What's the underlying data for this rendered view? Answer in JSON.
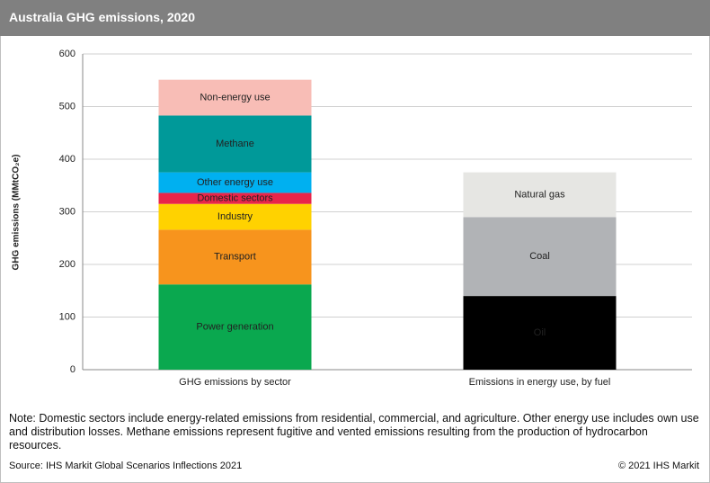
{
  "header": {
    "title": "Australia GHG emissions, 2020"
  },
  "chart_data": {
    "type": "stacked-bar",
    "y_label": "GHG emissions (MMtCO₂e)",
    "categories": [
      "GHG emissions by sector",
      "Emissions in energy use, by fuel"
    ],
    "series": [
      {
        "name": "Power generation",
        "color": "#0aa84f",
        "values": [
          162,
          null
        ]
      },
      {
        "name": "Transport",
        "color": "#f7941d",
        "values": [
          104,
          null
        ]
      },
      {
        "name": "Industry",
        "color": "#ffd200",
        "values": [
          49,
          null
        ]
      },
      {
        "name": "Domestic sectors",
        "color": "#e8254a",
        "values": [
          21,
          null
        ]
      },
      {
        "name": "Other energy use",
        "color": "#00b0f0",
        "values": [
          39,
          null
        ]
      },
      {
        "name": "Methane",
        "color": "#009999",
        "values": [
          108,
          null
        ]
      },
      {
        "name": "Non-energy use",
        "color": "#f8bdb6",
        "values": [
          68,
          null
        ]
      },
      {
        "name": "Oil",
        "color": "#000000",
        "values": [
          null,
          140
        ]
      },
      {
        "name": "Coal",
        "color": "#b1b3b6",
        "values": [
          null,
          150
        ]
      },
      {
        "name": "Natural gas",
        "color": "#e6e6e3",
        "values": [
          null,
          85
        ]
      }
    ],
    "ylim": [
      0,
      600
    ],
    "yticks": [
      0,
      100,
      200,
      300,
      400,
      500,
      600
    ],
    "grid": true
  },
  "note": "Note: Domestic sectors include energy-related  emissions from residential, commercial, and agriculture. Other energy use includes own use and distribution losses. Methane emissions represent fugitive and vented emissions resulting from the production of hydrocarbon resources.",
  "source": "Source: IHS Markit Global Scenarios Inflections 2021",
  "copyright": "© 2021 IHS Markit"
}
